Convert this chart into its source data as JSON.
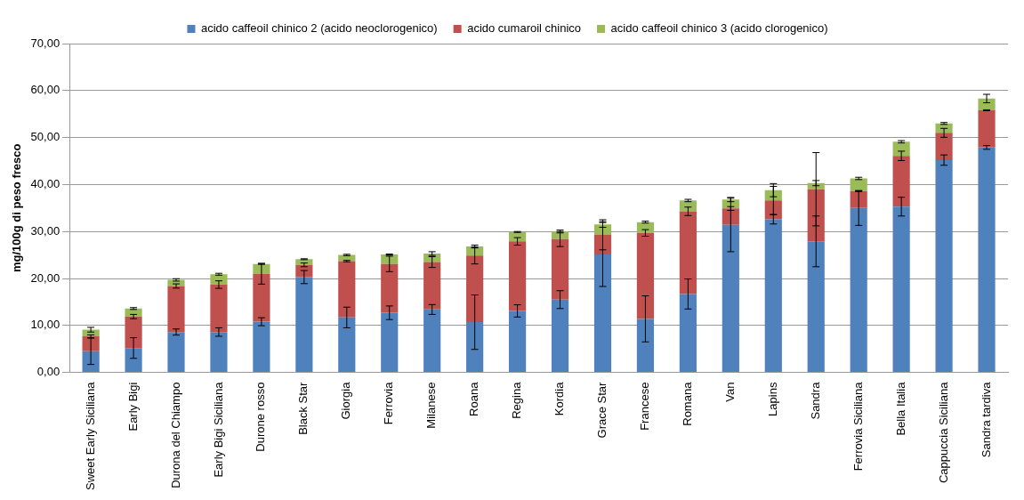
{
  "chart_data": {
    "type": "bar",
    "stacked": true,
    "ylabel": "mg/100g di peso fresco",
    "categories": [
      "Sweet Early Siciliana",
      "Early Bigi",
      "Durona del Chiampo",
      "Early Bigi Siciliana",
      "Durone rosso",
      "Black Star",
      "Giorgia",
      "Ferrovia",
      "Milanese",
      "Roana",
      "Regina",
      "Kordia",
      "Grace Star",
      "Francese",
      "Romana",
      "Van",
      "Lapins",
      "Sandra",
      "Ferrovia Siciliana",
      "Bella Italia",
      "Cappuccia Siciliana",
      "Sandra tardiva"
    ],
    "series": [
      {
        "name": "acido caffeoil chinico 2 (acido neoclorogenico)",
        "color": "#4f81bd",
        "values": [
          4.5,
          5.2,
          8.6,
          8.6,
          10.8,
          20.3,
          11.7,
          12.7,
          13.4,
          10.7,
          13.1,
          15.5,
          25.1,
          11.4,
          16.7,
          31.4,
          32.6,
          27.9,
          35.0,
          35.3,
          45.2,
          47.9
        ],
        "errors": [
          2.8,
          2.2,
          0.65,
          0.9,
          0.85,
          1.4,
          2.2,
          1.45,
          1.05,
          5.8,
          1.3,
          1.9,
          6.8,
          4.9,
          3.2,
          5.7,
          1.0,
          5.4,
          3.7,
          2.0,
          1.1,
          0.4
        ]
      },
      {
        "name": "acido cumaroil chinico",
        "color": "#c0504d",
        "values": [
          3.2,
          6.7,
          9.8,
          10.1,
          10.2,
          2.6,
          12.0,
          10.4,
          10.1,
          14.2,
          14.8,
          12.9,
          4.2,
          18.3,
          17.6,
          3.5,
          4.0,
          11.1,
          3.6,
          10.8,
          5.8,
          7.9
        ],
        "errors": [
          0.3,
          0.45,
          0.45,
          0.8,
          2.2,
          0.4,
          0.15,
          1.65,
          1.15,
          1.8,
          0.8,
          1.6,
          3.2,
          0.7,
          0.9,
          0.4,
          3.0,
          7.8,
          0.1,
          1.0,
          0.95,
          0.1
        ]
      },
      {
        "name": "acido caffeoil chinico 3 (acido clorogenico)",
        "color": "#9bbb59",
        "values": [
          1.4,
          1.7,
          1.3,
          2.2,
          2.1,
          1.2,
          1.3,
          2.0,
          1.8,
          1.9,
          2.0,
          1.6,
          2.2,
          2.3,
          2.3,
          1.9,
          2.2,
          1.3,
          2.7,
          3.0,
          2.0,
          2.5
        ],
        "errors": [
          0.5,
          0.2,
          0.25,
          0.2,
          0.1,
          0.1,
          0.15,
          0.1,
          0.4,
          0.3,
          0.1,
          0.3,
          0.6,
          0.2,
          0.25,
          0.45,
          1.4,
          0.55,
          0.25,
          0.25,
          0.2,
          0.9
        ]
      }
    ],
    "ylim": [
      0,
      70
    ],
    "yticks": [
      {
        "value": 0,
        "label": "0,00"
      },
      {
        "value": 10,
        "label": "10,00"
      },
      {
        "value": 20,
        "label": "20,00"
      },
      {
        "value": 30,
        "label": "30,00"
      },
      {
        "value": 40,
        "label": "40,00"
      },
      {
        "value": 50,
        "label": "50,00"
      },
      {
        "value": 60,
        "label": "60,00"
      },
      {
        "value": 70,
        "label": "70,00"
      }
    ],
    "grid": "y",
    "legend": "top"
  }
}
